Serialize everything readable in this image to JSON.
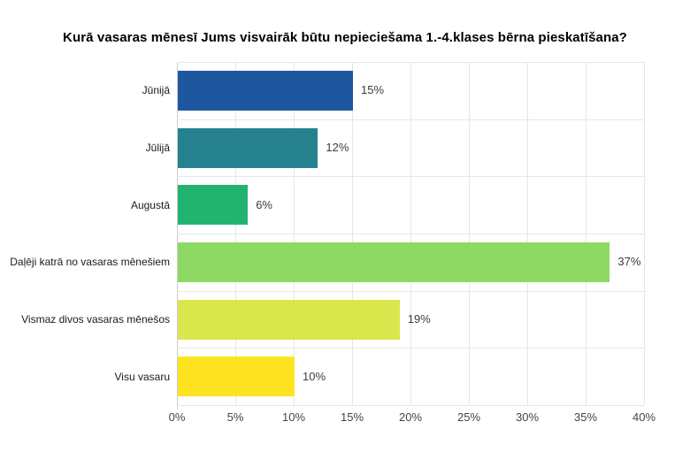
{
  "chart_data": {
    "type": "bar",
    "orientation": "horizontal",
    "title": "Kurā vasaras mēnesī Jums visvairāk būtu nepieciešama 1.-4.klases bērna pieskatīšana?",
    "categories": [
      "Jūnijā",
      "Jūlijā",
      "Augustā",
      "Daļēji katrā no vasaras mēnešiem",
      "Vismaz divos vasaras mēnešos",
      "Visu vasaru"
    ],
    "values": [
      15,
      12,
      6,
      37,
      19,
      10
    ],
    "value_labels": [
      "15%",
      "12%",
      "6%",
      "37%",
      "19%",
      "10%"
    ],
    "bar_colors": [
      "#1e579f",
      "#26818e",
      "#21b471",
      "#8ed964",
      "#d9e74d",
      "#fde320"
    ],
    "xlabel": "",
    "ylabel": "",
    "xlim": [
      0,
      40
    ],
    "xticks": [
      0,
      5,
      10,
      15,
      20,
      25,
      30,
      35,
      40
    ],
    "xtick_labels": [
      "0%",
      "5%",
      "10%",
      "15%",
      "20%",
      "25%",
      "30%",
      "35%",
      "40%"
    ],
    "grid": true,
    "legend": "none",
    "colors": {
      "gridline": "#e6e6e6",
      "baseline": "#cccccc",
      "axis_text": "#444444",
      "value_text": "#3c3c3c",
      "category_text": "#1a1a1a",
      "background": "#ffffff"
    }
  }
}
